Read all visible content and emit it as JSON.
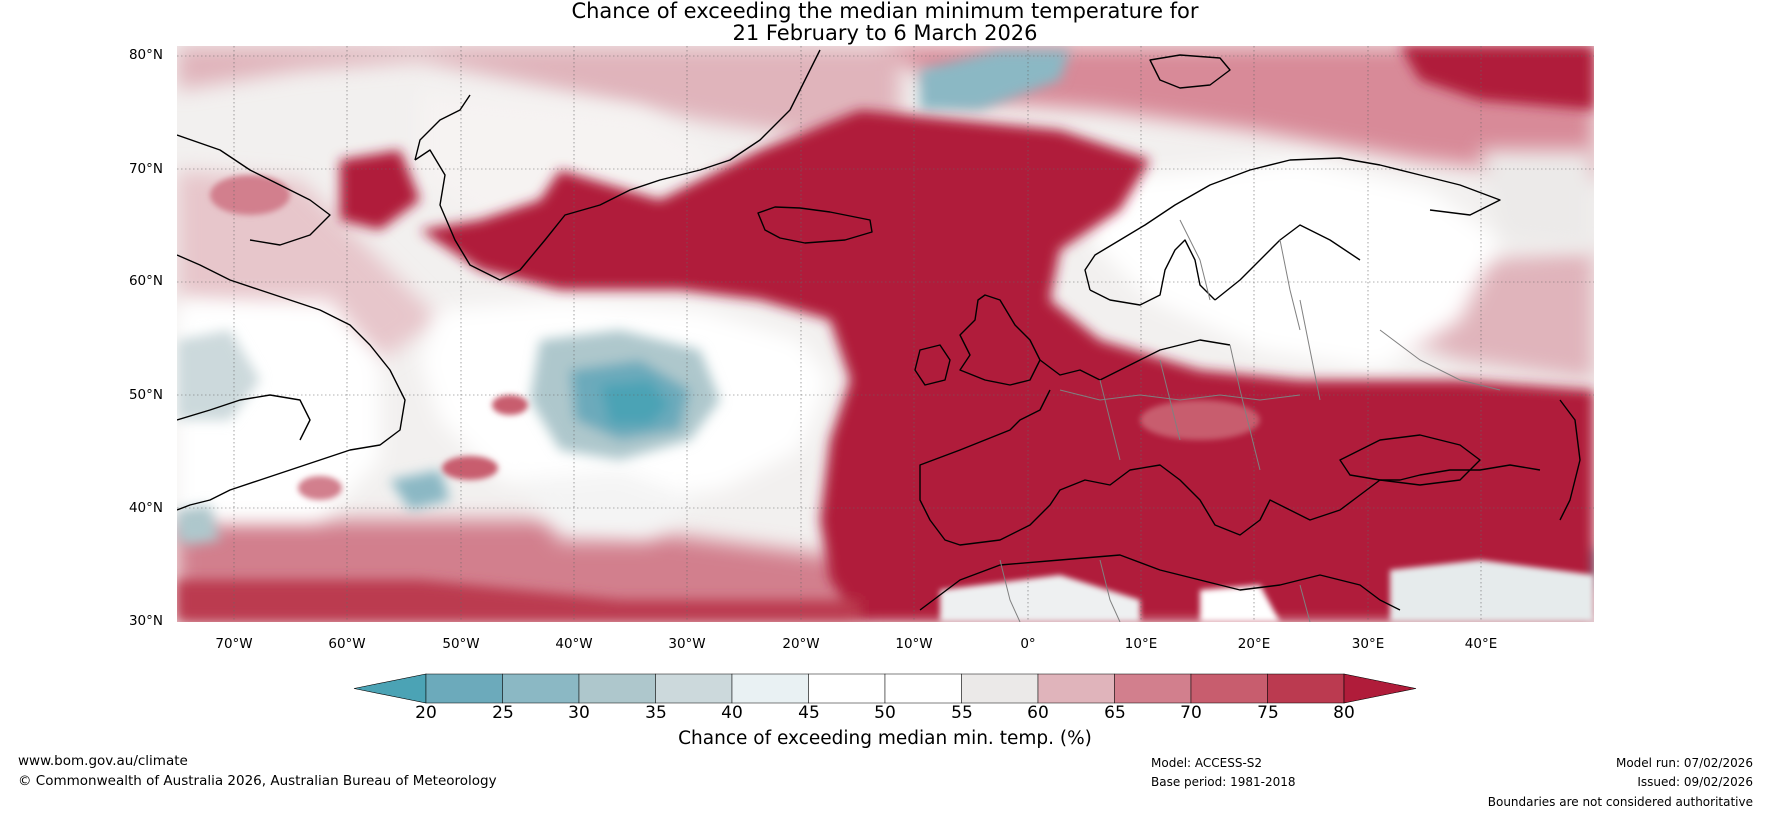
{
  "title": {
    "line1": "Chance of exceeding the median minimum temperature for",
    "line2": "21 February to 6 March 2026"
  },
  "map": {
    "lat_labels": [
      "80°N",
      "70°N",
      "60°N",
      "50°N",
      "40°N",
      "30°N"
    ],
    "lon_labels": [
      "70°W",
      "60°W",
      "50°W",
      "40°W",
      "30°W",
      "20°W",
      "10°W",
      "0°",
      "10°E",
      "20°E",
      "30°E",
      "40°E"
    ],
    "extent": {
      "lon": [
        -75,
        50
      ],
      "lat": [
        30,
        81
      ]
    }
  },
  "colorbar": {
    "ticks": [
      "20",
      "25",
      "30",
      "35",
      "40",
      "45",
      "50",
      "55",
      "60",
      "65",
      "70",
      "75",
      "80"
    ],
    "colors": [
      "#4ba3b5",
      "#6caabb",
      "#8bb8c4",
      "#aec7cc",
      "#ccd9dc",
      "#e9f1f3",
      "#ffffff",
      "#ffffff",
      "#ebe9e8",
      "#e0b4bb",
      "#d27f8d",
      "#c85d6e",
      "#bb3a50",
      "#b01c3a"
    ],
    "label": "Chance of exceeding median min. temp. (%)"
  },
  "footer": {
    "website": "www.bom.gov.au/climate",
    "copyright": "© Commonwealth of Australia 2026, Australian Bureau of Meteorology",
    "model": "Model: ACCESS-S2",
    "base_period": "Base period: 1981-2018",
    "model_run": "Model run: 07/02/2026",
    "issued": "Issued: 09/02/2026",
    "disclaimer": "Boundaries are not considered authoritative"
  }
}
